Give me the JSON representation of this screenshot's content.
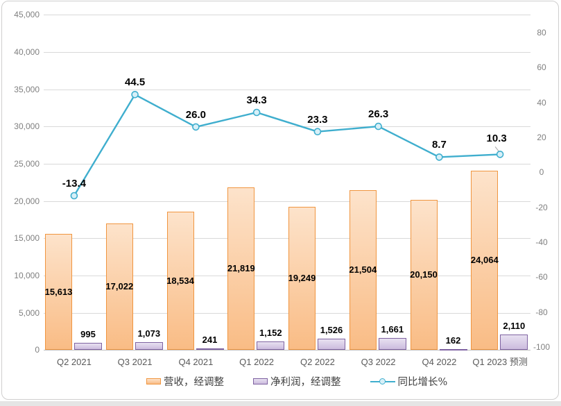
{
  "chart_data": {
    "type": "bar+line",
    "categories": [
      "Q2 2021",
      "Q3 2021",
      "Q4 2021",
      "Q1 2022",
      "Q2 2022",
      "Q3 2022",
      "Q4 2022",
      "Q1 2023 预测"
    ],
    "series": [
      {
        "name": "营收，经调整",
        "type": "bar",
        "axis": "left",
        "values": [
          15613,
          17022,
          18534,
          21819,
          19249,
          21504,
          20150,
          24064
        ],
        "labels": [
          "15,613",
          "17,022",
          "18,534",
          "21,819",
          "19,249",
          "21,504",
          "20,150",
          "24,064"
        ],
        "label_position": "inside-center"
      },
      {
        "name": "净利润，经调整",
        "type": "bar",
        "axis": "left",
        "values": [
          995,
          1073,
          241,
          1152,
          1526,
          1661,
          162,
          2110
        ],
        "labels": [
          "995",
          "1,073",
          "241",
          "1,152",
          "1,526",
          "1,661",
          "162",
          "2,110"
        ],
        "label_position": "above"
      },
      {
        "name": "同比增长%",
        "type": "line",
        "axis": "right",
        "values": [
          -13.4,
          44.5,
          26.0,
          34.3,
          23.3,
          26.3,
          8.7,
          10.3
        ],
        "labels": [
          "-13.4",
          "44.5",
          "26.0",
          "34.3",
          "23.3",
          "26.3",
          "8.7",
          "10.3"
        ],
        "label_position": "above",
        "last_label_leader_line": true
      }
    ],
    "left_axis": {
      "min": 0,
      "max": 45000,
      "step": 5000,
      "tick_labels": [
        "45,000",
        "40,000",
        "35,000",
        "30,000",
        "25,000",
        "20,000",
        "15,000",
        "10,000",
        "5,000",
        "0"
      ]
    },
    "right_axis": {
      "min": -100,
      "max": 80,
      "step": 20,
      "tick_labels": [
        "80",
        "60",
        "40",
        "20",
        "0",
        "-20",
        "-40",
        "-60",
        "-80",
        "-100"
      ]
    },
    "grid": true,
    "legend_position": "bottom",
    "colors": {
      "bar1_fill_top": "#FDE3CB",
      "bar1_fill_bottom": "#F9BC85",
      "bar1_border": "#F0953F",
      "bar2_fill_top": "#E8E1F1",
      "bar2_fill_bottom": "#CCBCDE",
      "bar2_border": "#7E62A1",
      "line": "#3FAECE",
      "marker_fill": "#D8F0F8",
      "gridline": "#D9D9D9",
      "axis_line": "#BFBFBF",
      "tick_text": "#7F7F7F",
      "category_text": "#595959",
      "data_label": "#000000",
      "leader_line": "#A6A6A6"
    }
  }
}
